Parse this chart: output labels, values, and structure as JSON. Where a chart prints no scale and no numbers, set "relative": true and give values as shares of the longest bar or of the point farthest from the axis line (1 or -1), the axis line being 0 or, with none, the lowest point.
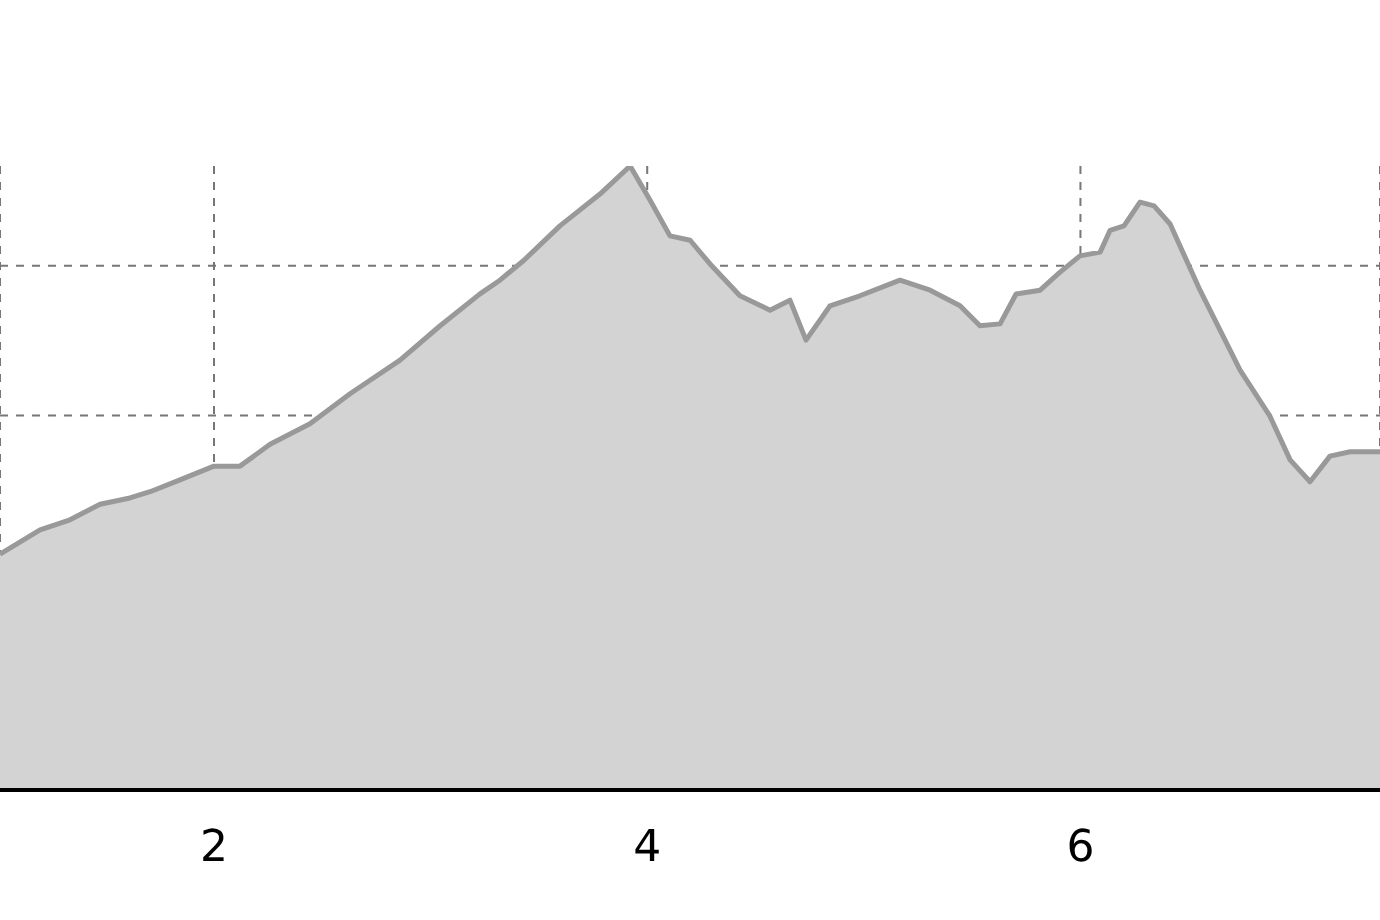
{
  "chart_data": {
    "type": "area",
    "relative": true,
    "color": "#d3d3d3",
    "grid": true,
    "line_style": "dashed",
    "xlim": [
      1.012,
      7.383
    ],
    "xticks": [
      2,
      4,
      6
    ],
    "x": [
      1.012,
      1.197,
      1.335,
      1.474,
      1.612,
      1.705,
      1.843,
      2.0,
      2.12,
      2.259,
      2.443,
      2.628,
      2.859,
      3.044,
      3.228,
      3.32,
      3.431,
      3.597,
      3.782,
      3.921,
      4.012,
      4.105,
      4.198,
      4.29,
      4.428,
      4.567,
      4.659,
      4.733,
      4.844,
      4.982,
      5.167,
      5.306,
      5.444,
      5.536,
      5.629,
      5.703,
      5.814,
      5.906,
      5.998,
      6.091,
      6.137,
      6.201,
      6.275,
      6.34,
      6.414,
      6.552,
      6.737,
      6.875,
      6.968,
      7.06,
      7.152,
      7.245,
      7.383
    ],
    "values": [
      0.378,
      0.417,
      0.433,
      0.458,
      0.468,
      0.478,
      0.497,
      0.519,
      0.519,
      0.554,
      0.587,
      0.635,
      0.689,
      0.744,
      0.795,
      0.817,
      0.849,
      0.904,
      0.955,
      1.0,
      0.946,
      0.888,
      0.881,
      0.843,
      0.792,
      0.769,
      0.785,
      0.721,
      0.776,
      0.792,
      0.817,
      0.801,
      0.776,
      0.744,
      0.747,
      0.795,
      0.801,
      0.83,
      0.856,
      0.862,
      0.897,
      0.904,
      0.942,
      0.936,
      0.907,
      0.801,
      0.673,
      0.599,
      0.529,
      0.494,
      0.535,
      0.542,
      0.542
    ]
  }
}
